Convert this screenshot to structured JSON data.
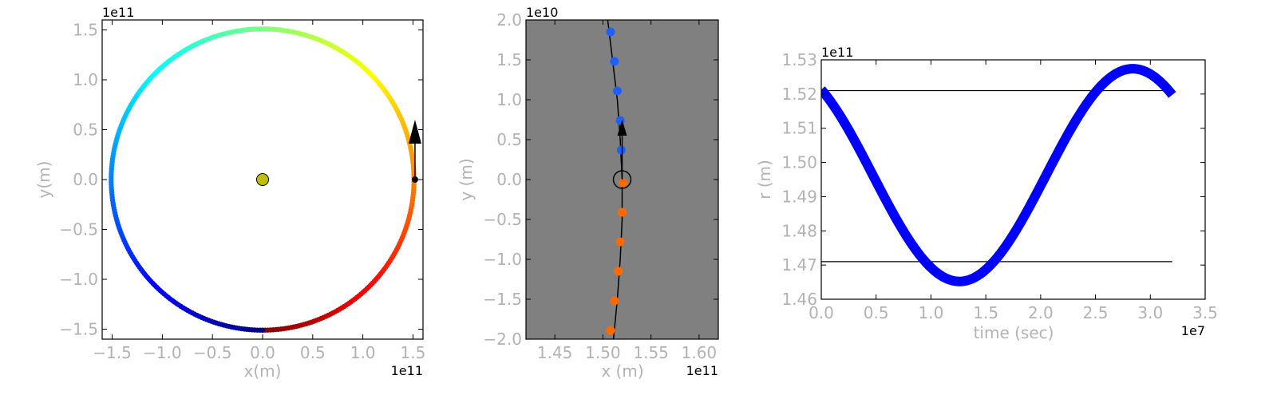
{
  "chart_data": [
    {
      "type": "scatter",
      "title": "",
      "xlabel": "x(m)",
      "ylabel": "y(m)",
      "x_offset_label": "1e11",
      "y_offset_label": "1e11",
      "xlim": [
        -1.6,
        1.6
      ],
      "ylim": [
        -1.6,
        1.6
      ],
      "xticks": [
        "−1.5",
        "−1.0",
        "−0.5",
        "0.0",
        "0.5",
        "1.0",
        "1.5"
      ],
      "xtick_values": [
        -1.5,
        -1.0,
        -0.5,
        0.0,
        0.5,
        1.0,
        1.5
      ],
      "yticks": [
        "−1.5",
        "−1.0",
        "−0.5",
        "0.0",
        "0.5",
        "1.0",
        "1.5"
      ],
      "ytick_values": [
        -1.5,
        -1.0,
        -0.5,
        0.0,
        0.5,
        1.0,
        1.5
      ],
      "orbit": {
        "center": [
          0.0,
          0.0
        ],
        "radius": 1.51,
        "points": 365,
        "colormap": "jet",
        "start_angle_deg": -90
      },
      "sun": {
        "x": 0.0,
        "y": 0.0,
        "color": "#bfbf00"
      },
      "planet": {
        "x": 1.52,
        "y": 0.0,
        "color": "#000000"
      },
      "velocity_arrow": {
        "x": 1.52,
        "y": 0.0,
        "dx": 0.0,
        "dy": 0.6,
        "color": "#000000"
      },
      "grid": false,
      "background": "#ffffff"
    },
    {
      "type": "scatter",
      "title": "",
      "xlabel": "x (m)",
      "ylabel": "y (m)",
      "x_offset_label": "1e11",
      "y_offset_label": "1e10",
      "xlim": [
        1.42,
        1.62
      ],
      "ylim": [
        -2.0,
        2.0
      ],
      "xticks": [
        "1.45",
        "1.50",
        "1.55",
        "1.60"
      ],
      "xtick_values": [
        1.45,
        1.5,
        1.55,
        1.6
      ],
      "yticks": [
        "−2.0",
        "−1.5",
        "−1.0",
        "−0.5",
        "0.0",
        "0.5",
        "1.0",
        "1.5",
        "2.0"
      ],
      "ytick_values": [
        -2.0,
        -1.5,
        -1.0,
        -0.5,
        0.0,
        0.5,
        1.0,
        1.5,
        2.0
      ],
      "blue_points": {
        "x": [
          1.508,
          1.512,
          1.515,
          1.518,
          1.519
        ],
        "y": [
          1.85,
          1.48,
          1.11,
          0.74,
          0.37
        ],
        "color": "#1f5fff"
      },
      "orange_points": {
        "x": [
          1.521,
          1.52,
          1.518,
          1.516,
          1.512,
          1.508
        ],
        "y": [
          -0.04,
          -0.41,
          -0.78,
          -1.15,
          -1.52,
          -1.89
        ],
        "color": "#ff6a00"
      },
      "trajectory": {
        "x": [
          1.505,
          1.51,
          1.515,
          1.518,
          1.52,
          1.52,
          1.518,
          1.515,
          1.511
        ],
        "y": [
          2.0,
          1.5,
          1.0,
          0.5,
          0.0,
          -0.5,
          -1.0,
          -1.5,
          -2.0
        ]
      },
      "planet_marker": {
        "x": 1.52,
        "y": 0.0
      },
      "velocity_arrow": {
        "x": 1.52,
        "y": 0.0,
        "dx": 0.0,
        "dy": 0.75,
        "color": "#000000"
      },
      "grid": false,
      "background": "#808080"
    },
    {
      "type": "line",
      "title": "",
      "xlabel": "time (sec)",
      "ylabel": "r (m)",
      "x_offset_label": "1e7",
      "y_offset_label": "1e11",
      "xlim": [
        0.0,
        3.5
      ],
      "ylim": [
        1.46,
        1.53
      ],
      "xticks": [
        "0.0",
        "0.5",
        "1.0",
        "1.5",
        "2.0",
        "2.5",
        "3.0",
        "3.5"
      ],
      "xtick_values": [
        0.0,
        0.5,
        1.0,
        1.5,
        2.0,
        2.5,
        3.0,
        3.5
      ],
      "yticks": [
        "1.46",
        "1.47",
        "1.48",
        "1.49",
        "1.50",
        "1.51",
        "1.52",
        "1.53"
      ],
      "ytick_values": [
        1.46,
        1.47,
        1.48,
        1.49,
        1.5,
        1.51,
        1.52,
        1.53
      ],
      "series": [
        {
          "t_range": [
            0.0,
            3.2
          ],
          "r_mean": 1.4963,
          "r_amplitude": 0.0311,
          "min_time": 1.26,
          "period": 3.16,
          "color": "#0000ff"
        }
      ],
      "hlines": [
        {
          "y": 1.521,
          "x_range": [
            0.0,
            3.2
          ]
        },
        {
          "y": 1.471,
          "x_range": [
            0.0,
            3.2
          ]
        }
      ],
      "grid": false,
      "background": "#ffffff"
    }
  ]
}
